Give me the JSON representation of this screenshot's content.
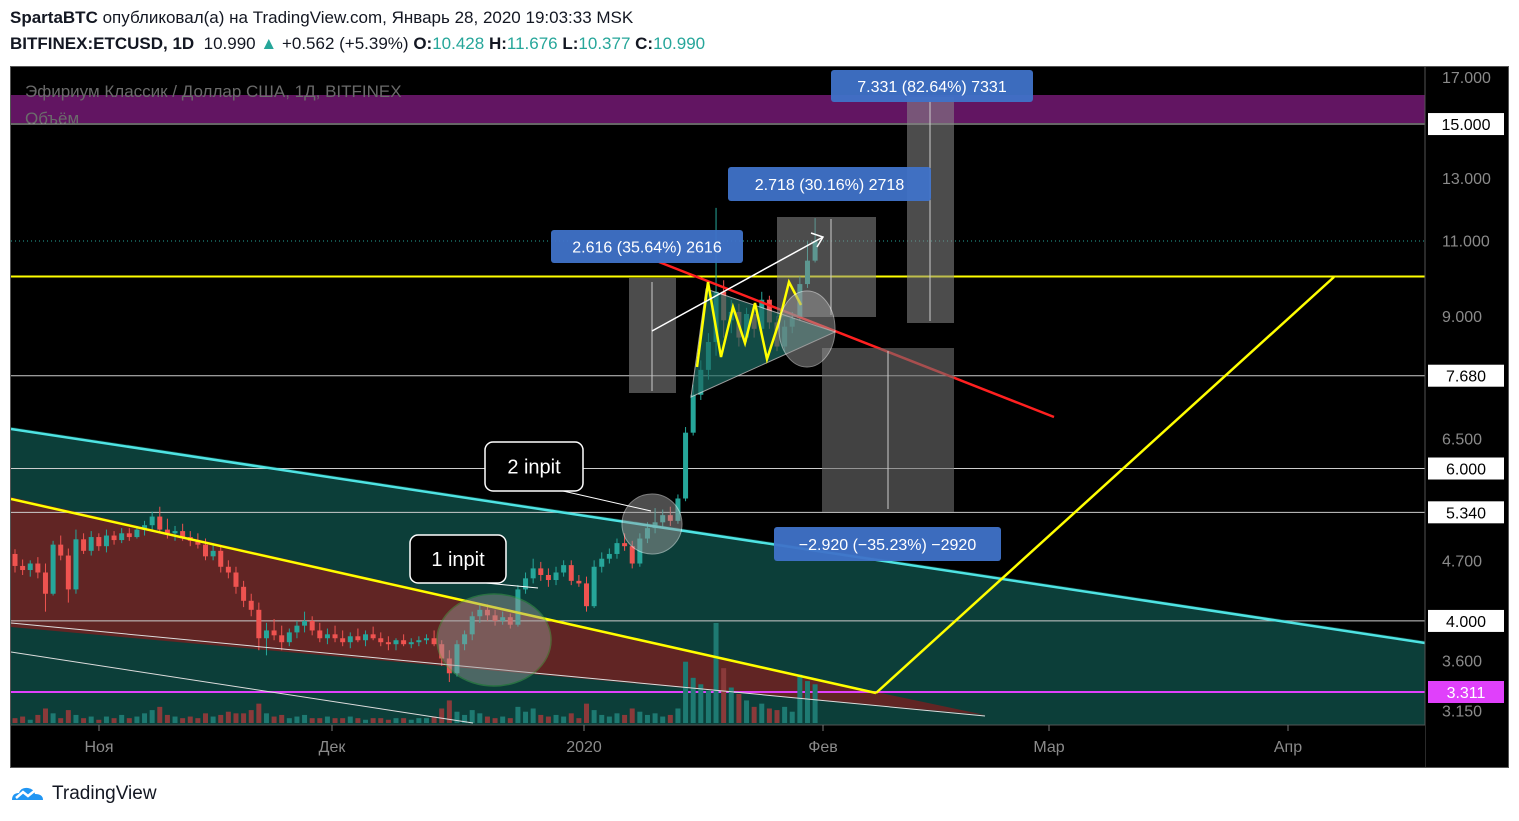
{
  "header": {
    "author": "SpartaBTC",
    "published_text": "опубликовал(а) на TradingView.com, Январь 28, 2020 19:03:33 MSK",
    "symbol": "BITFINEX:ETCUSD, 1D",
    "last": "10.990",
    "change_arrow": "▲",
    "change": "+0.562 (+5.39%)",
    "o_label": "O:",
    "o": "10.428",
    "h_label": "H:",
    "h": "11.676",
    "l_label": "L:",
    "l": "10.377",
    "c_label": "C:",
    "c": "10.990"
  },
  "chart_data": {
    "type": "candlestick",
    "title": "Эфириум Классик / Доллар США, 1Д, BITFINEX",
    "subtitle": "Объём",
    "y_scale": "log",
    "ylim": [
      3.05,
      17.5
    ],
    "y_ticks": [
      "17.000",
      "15.000",
      "13.000",
      "11.000",
      "9.000",
      "7.680",
      "6.500",
      "6.000",
      "5.340",
      "4.700",
      "4.000",
      "3.600",
      "3.311",
      "3.150"
    ],
    "highlight_levels": [
      {
        "label": "10.000",
        "value": 10.0,
        "color": "#ffff00"
      },
      {
        "label": "3.311",
        "value": 3.311,
        "color": "#e040fb"
      }
    ],
    "x_ticks": [
      "Ноя",
      "Дек",
      "2020",
      "Фев",
      "Мар",
      "Апр"
    ],
    "annotations": [
      {
        "text": "2.616 (35.64%) 2616"
      },
      {
        "text": "2.718 (30.16%) 2718"
      },
      {
        "text": "7.331 (82.64%) 7331"
      },
      {
        "text": "−2.920 (−35.23%) −2920"
      },
      {
        "text": "1 inpit"
      },
      {
        "text": "2 inpit"
      }
    ],
    "ohlc": [
      [
        4.78,
        4.84,
        4.55,
        4.63
      ],
      [
        4.63,
        4.71,
        4.52,
        4.58
      ],
      [
        4.58,
        4.7,
        4.5,
        4.66
      ],
      [
        4.66,
        4.74,
        4.48,
        4.55
      ],
      [
        4.55,
        4.66,
        4.1,
        4.3
      ],
      [
        4.3,
        4.95,
        4.28,
        4.9
      ],
      [
        4.9,
        5.02,
        4.7,
        4.76
      ],
      [
        4.76,
        4.85,
        4.2,
        4.35
      ],
      [
        4.35,
        5.1,
        4.3,
        4.97
      ],
      [
        4.97,
        5.05,
        4.78,
        4.82
      ],
      [
        4.82,
        5.08,
        4.76,
        5.0
      ],
      [
        5.0,
        5.05,
        4.82,
        4.88
      ],
      [
        4.88,
        5.1,
        4.8,
        5.02
      ],
      [
        5.02,
        5.08,
        4.9,
        4.96
      ],
      [
        4.96,
        5.12,
        4.92,
        5.05
      ],
      [
        5.05,
        5.12,
        4.95,
        5.0
      ],
      [
        5.0,
        5.15,
        4.98,
        5.1
      ],
      [
        5.1,
        5.22,
        5.02,
        5.16
      ],
      [
        5.16,
        5.35,
        5.1,
        5.28
      ],
      [
        5.28,
        5.42,
        5.05,
        5.1
      ],
      [
        5.1,
        5.25,
        4.98,
        5.05
      ],
      [
        5.05,
        5.15,
        4.95,
        5.08
      ],
      [
        5.08,
        5.18,
        4.95,
        5.0
      ],
      [
        5.0,
        5.08,
        4.88,
        4.95
      ],
      [
        4.95,
        5.05,
        4.85,
        4.9
      ],
      [
        4.9,
        4.98,
        4.7,
        4.75
      ],
      [
        4.75,
        4.92,
        4.7,
        4.82
      ],
      [
        4.82,
        4.88,
        4.55,
        4.62
      ],
      [
        4.62,
        4.7,
        4.48,
        4.55
      ],
      [
        4.55,
        4.62,
        4.3,
        4.38
      ],
      [
        4.38,
        4.45,
        4.15,
        4.22
      ],
      [
        4.22,
        4.3,
        4.05,
        4.12
      ],
      [
        4.12,
        4.2,
        3.7,
        3.82
      ],
      [
        3.82,
        3.98,
        3.65,
        3.9
      ],
      [
        3.9,
        4.02,
        3.8,
        3.85
      ],
      [
        3.85,
        3.95,
        3.7,
        3.78
      ],
      [
        3.78,
        3.92,
        3.74,
        3.88
      ],
      [
        3.88,
        4.0,
        3.82,
        3.95
      ],
      [
        3.95,
        4.1,
        3.88,
        4.0
      ],
      [
        4.0,
        4.05,
        3.85,
        3.9
      ],
      [
        3.9,
        3.98,
        3.78,
        3.82
      ],
      [
        3.82,
        3.92,
        3.76,
        3.86
      ],
      [
        3.86,
        3.95,
        3.78,
        3.82
      ],
      [
        3.82,
        3.9,
        3.74,
        3.78
      ],
      [
        3.78,
        3.88,
        3.72,
        3.84
      ],
      [
        3.84,
        3.92,
        3.78,
        3.8
      ],
      [
        3.8,
        3.9,
        3.74,
        3.86
      ],
      [
        3.86,
        3.94,
        3.8,
        3.82
      ],
      [
        3.82,
        3.88,
        3.74,
        3.78
      ],
      [
        3.78,
        3.84,
        3.7,
        3.76
      ],
      [
        3.76,
        3.82,
        3.7,
        3.8
      ],
      [
        3.8,
        3.86,
        3.74,
        3.76
      ],
      [
        3.76,
        3.82,
        3.72,
        3.78
      ],
      [
        3.78,
        3.84,
        3.74,
        3.8
      ],
      [
        3.8,
        3.86,
        3.76,
        3.82
      ],
      [
        3.82,
        3.9,
        3.74,
        3.76
      ],
      [
        3.76,
        3.8,
        3.55,
        3.62
      ],
      [
        3.62,
        3.7,
        3.4,
        3.48
      ],
      [
        3.48,
        3.8,
        3.45,
        3.76
      ],
      [
        3.76,
        3.9,
        3.7,
        3.86
      ],
      [
        3.86,
        4.1,
        3.8,
        4.05
      ],
      [
        4.05,
        4.18,
        3.98,
        4.12
      ],
      [
        4.12,
        4.18,
        4.0,
        4.06
      ],
      [
        4.06,
        4.12,
        3.95,
        4.0
      ],
      [
        4.0,
        4.1,
        3.96,
        4.04
      ],
      [
        4.04,
        4.08,
        3.92,
        3.96
      ],
      [
        3.96,
        4.4,
        3.94,
        4.35
      ],
      [
        4.35,
        4.55,
        4.3,
        4.48
      ],
      [
        4.48,
        4.72,
        4.42,
        4.6
      ],
      [
        4.6,
        4.68,
        4.45,
        4.52
      ],
      [
        4.52,
        4.6,
        4.38,
        4.46
      ],
      [
        4.46,
        4.62,
        4.4,
        4.55
      ],
      [
        4.55,
        4.7,
        4.5,
        4.64
      ],
      [
        4.64,
        4.7,
        4.4,
        4.45
      ],
      [
        4.45,
        4.52,
        4.38,
        4.42
      ],
      [
        4.42,
        4.5,
        4.1,
        4.16
      ],
      [
        4.16,
        4.7,
        4.14,
        4.62
      ],
      [
        4.62,
        4.8,
        4.55,
        4.72
      ],
      [
        4.72,
        4.85,
        4.66,
        4.78
      ],
      [
        4.78,
        4.98,
        4.72,
        4.92
      ],
      [
        4.92,
        5.05,
        4.82,
        4.88
      ],
      [
        4.88,
        4.95,
        4.6,
        4.66
      ],
      [
        4.66,
        5.05,
        4.62,
        4.98
      ],
      [
        4.98,
        5.2,
        4.92,
        5.12
      ],
      [
        5.12,
        5.4,
        5.05,
        5.2
      ],
      [
        5.2,
        5.38,
        5.12,
        5.3
      ],
      [
        5.3,
        5.42,
        5.15,
        5.22
      ],
      [
        5.22,
        5.6,
        5.18,
        5.54
      ],
      [
        5.54,
        6.7,
        5.5,
        6.6
      ],
      [
        6.6,
        7.5,
        6.55,
        7.3
      ],
      [
        7.3,
        8.0,
        7.2,
        7.8
      ],
      [
        7.8,
        8.6,
        7.6,
        8.4
      ],
      [
        8.4,
        12.0,
        8.1,
        9.6
      ],
      [
        9.6,
        9.9,
        8.5,
        8.9
      ],
      [
        8.9,
        9.4,
        8.6,
        9.1
      ],
      [
        9.1,
        9.3,
        8.3,
        8.5
      ],
      [
        8.5,
        9.2,
        8.4,
        9.05
      ],
      [
        9.05,
        9.3,
        8.5,
        8.7
      ],
      [
        8.7,
        9.6,
        8.6,
        9.4
      ],
      [
        9.4,
        9.5,
        8.7,
        8.85
      ],
      [
        8.85,
        9.0,
        8.2,
        8.3
      ],
      [
        8.3,
        8.9,
        8.2,
        8.75
      ],
      [
        8.75,
        9.1,
        8.6,
        8.95
      ],
      [
        8.95,
        10.0,
        8.9,
        9.8
      ],
      [
        9.8,
        11.0,
        9.7,
        10.43
      ],
      [
        10.43,
        11.68,
        10.38,
        10.99
      ]
    ],
    "volume": [
      3,
      4,
      2,
      5,
      9,
      6,
      3,
      8,
      5,
      3,
      4,
      2,
      4,
      3,
      5,
      3,
      4,
      6,
      8,
      10,
      5,
      4,
      3,
      4,
      3,
      6,
      4,
      5,
      7,
      6,
      6,
      8,
      12,
      6,
      4,
      5,
      3,
      4,
      5,
      3,
      3,
      4,
      3,
      3,
      4,
      3,
      2,
      3,
      3,
      2,
      3,
      3,
      2,
      3,
      3,
      4,
      9,
      14,
      7,
      5,
      8,
      6,
      4,
      3,
      4,
      3,
      10,
      7,
      9,
      5,
      4,
      5,
      4,
      6,
      3,
      12,
      8,
      5,
      4,
      6,
      5,
      9,
      7,
      5,
      6,
      4,
      5,
      9,
      38,
      28,
      24,
      20,
      62,
      34,
      22,
      18,
      14,
      10,
      12,
      9,
      8,
      10,
      7,
      30,
      26,
      24
    ]
  }
}
